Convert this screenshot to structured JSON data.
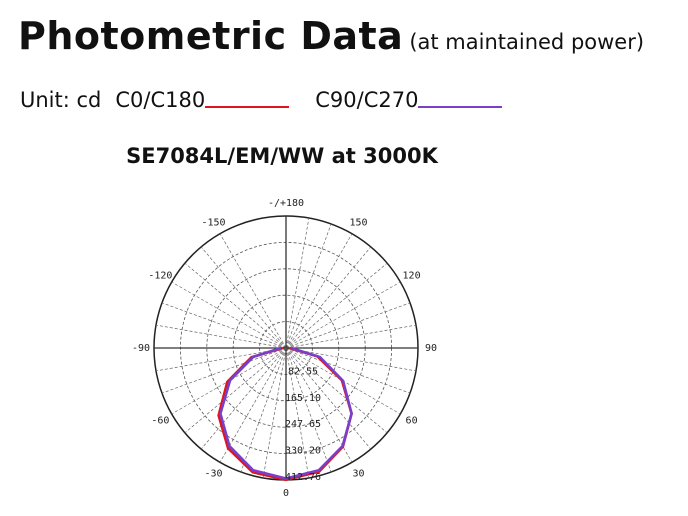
{
  "chart_data": {
    "type": "polar",
    "heading": "Photometric Data",
    "heading_note": "(at maintained power)",
    "unit_label": "Unit: cd",
    "title": "SE7084L/EM/WW at 3000K",
    "x": [
      -90,
      -75,
      -60,
      -45,
      -30,
      -15,
      0,
      15,
      30,
      45,
      60,
      75,
      90
    ],
    "series": [
      {
        "name": "C0/C180",
        "color": "#e0141e",
        "values": [
          10,
          112,
          212,
          298,
          362,
          402,
          412,
          400,
          356,
          290,
          202,
          102,
          10
        ]
      },
      {
        "name": "C90/C270",
        "color": "#7a3fc8",
        "values": [
          16,
          106,
          202,
          290,
          354,
          396,
          408,
          396,
          354,
          290,
          206,
          110,
          16
        ]
      }
    ],
    "rlim": [
      0,
      412.76
    ],
    "rticks": [
      82.55,
      {
        "value": 165.1,
        "label": "165.10"
      },
      247.65,
      {
        "value": 330.2,
        "label": "330.20"
      },
      412.76
    ],
    "angleticks": [
      0,
      30,
      60,
      90,
      120,
      150,
      {
        "value": 180,
        "label": "-/+180"
      },
      -150,
      -120,
      -90,
      -60,
      -30
    ],
    "grid": true
  }
}
